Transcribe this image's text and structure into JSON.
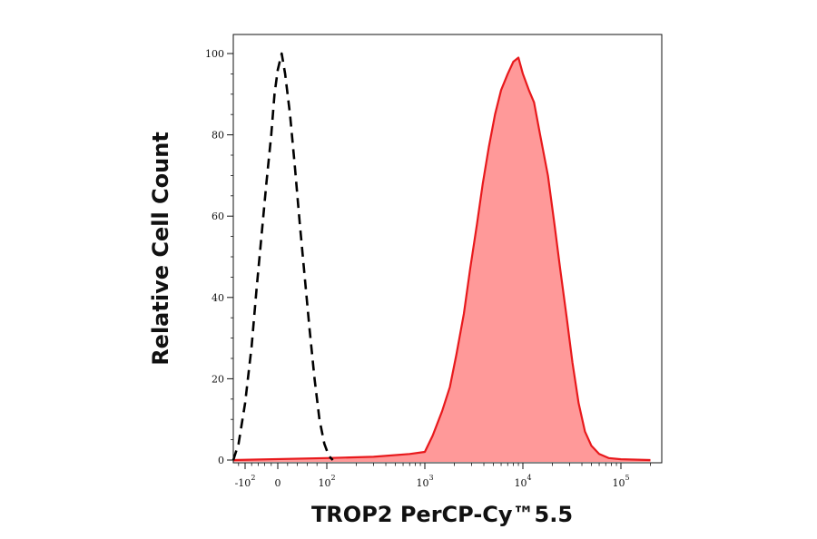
{
  "chart_data": {
    "type": "area",
    "title": "",
    "xlabel": "TROP2 PerCP-Cy™5.5",
    "ylabel": "Relative Cell Count",
    "xscale": "biexponential",
    "ylim": [
      0,
      100
    ],
    "yticks": [
      0,
      20,
      40,
      60,
      80,
      100
    ],
    "xticks": [
      {
        "value": -100,
        "base": "-10",
        "exp": "2"
      },
      {
        "value": 0,
        "base": "0",
        "exp": ""
      },
      {
        "value": 100,
        "base": "10",
        "exp": "2"
      },
      {
        "value": 1000,
        "base": "10",
        "exp": "3"
      },
      {
        "value": 10000,
        "base": "10",
        "exp": "4"
      },
      {
        "value": 100000,
        "base": "10",
        "exp": "5"
      }
    ],
    "grid": false,
    "legend": "none",
    "series": [
      {
        "style": "dashed",
        "color": "#000000",
        "fill": false,
        "points": [
          [
            -140,
            0
          ],
          [
            -120,
            4
          ],
          [
            -100,
            14
          ],
          [
            -80,
            28
          ],
          [
            -65,
            42
          ],
          [
            -50,
            55
          ],
          [
            -35,
            68
          ],
          [
            -20,
            80
          ],
          [
            -10,
            90
          ],
          [
            0,
            96
          ],
          [
            8,
            100
          ],
          [
            15,
            95
          ],
          [
            25,
            85
          ],
          [
            35,
            72
          ],
          [
            45,
            58
          ],
          [
            55,
            45
          ],
          [
            65,
            32
          ],
          [
            75,
            20
          ],
          [
            85,
            10
          ],
          [
            95,
            4
          ],
          [
            105,
            1
          ],
          [
            115,
            0
          ]
        ]
      },
      {
        "style": "solid",
        "color": "#e8191c",
        "fill": true,
        "fill_color": "#ff9999",
        "points": [
          [
            -200,
            0
          ],
          [
            100,
            0.5
          ],
          [
            300,
            0.8
          ],
          [
            700,
            1.5
          ],
          [
            1000,
            2
          ],
          [
            1200,
            6
          ],
          [
            1500,
            12
          ],
          [
            1800,
            18
          ],
          [
            2100,
            26
          ],
          [
            2500,
            36
          ],
          [
            2900,
            47
          ],
          [
            3400,
            58
          ],
          [
            3900,
            68
          ],
          [
            4500,
            77
          ],
          [
            5200,
            85
          ],
          [
            6000,
            91
          ],
          [
            7000,
            95
          ],
          [
            8000,
            98
          ],
          [
            9000,
            99
          ],
          [
            10000,
            95
          ],
          [
            11500,
            91
          ],
          [
            13000,
            88
          ],
          [
            15000,
            80
          ],
          [
            18000,
            70
          ],
          [
            21000,
            58
          ],
          [
            24000,
            47
          ],
          [
            28000,
            35
          ],
          [
            32000,
            24
          ],
          [
            37000,
            14
          ],
          [
            43000,
            7
          ],
          [
            50000,
            3.5
          ],
          [
            60000,
            1.5
          ],
          [
            75000,
            0.5
          ],
          [
            100000,
            0.2
          ],
          [
            200000,
            0
          ]
        ]
      }
    ]
  }
}
